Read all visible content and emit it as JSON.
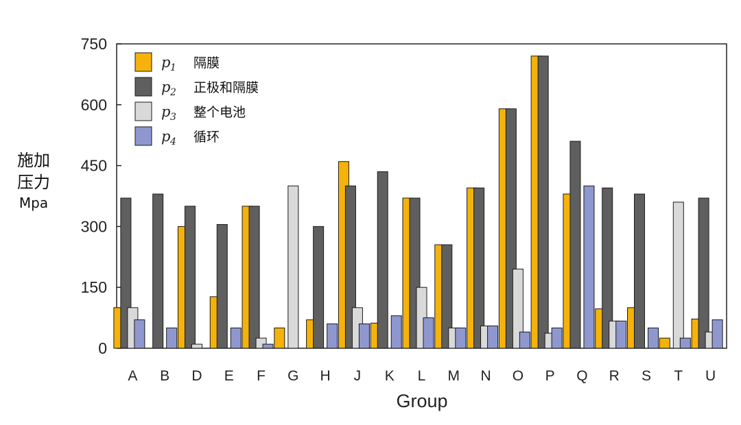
{
  "chart_data": {
    "type": "bar",
    "title": "",
    "xlabel": "Group",
    "ylabel": [
      "施加",
      "压力"
    ],
    "yunit": "Mpa",
    "ylim": [
      0,
      750
    ],
    "yticks": [
      0,
      150,
      300,
      450,
      600,
      750
    ],
    "categories": [
      "A",
      "B",
      "D",
      "E",
      "F",
      "G",
      "H",
      "J",
      "K",
      "L",
      "M",
      "N",
      "O",
      "P",
      "Q",
      "R",
      "S",
      "T",
      "U"
    ],
    "series": [
      {
        "name": "隔膜",
        "symbol": "p",
        "sub": "1",
        "color": "#F5B20A",
        "values": [
          100,
          0,
          300,
          127,
          350,
          50,
          70,
          460,
          62,
          370,
          255,
          395,
          590,
          720,
          380,
          97,
          100,
          25,
          72
        ]
      },
      {
        "name": "正极和隔膜",
        "symbol": "p",
        "sub": "2",
        "color": "#5F5F5F",
        "values": [
          370,
          380,
          350,
          305,
          350,
          0,
          300,
          400,
          435,
          370,
          255,
          395,
          590,
          720,
          510,
          395,
          380,
          0,
          370
        ]
      },
      {
        "name": "整个电池",
        "symbol": "p",
        "sub": "3",
        "color": "#D9D9D9",
        "values": [
          100,
          0,
          10,
          0,
          25,
          400,
          0,
          100,
          0,
          150,
          50,
          55,
          195,
          37,
          0,
          67,
          0,
          360,
          40
        ]
      },
      {
        "name": "循环",
        "symbol": "p",
        "sub": "4",
        "color": "#8E98CF",
        "values": [
          70,
          50,
          0,
          50,
          10,
          0,
          60,
          60,
          80,
          75,
          50,
          55,
          40,
          50,
          400,
          67,
          50,
          25,
          70
        ]
      }
    ],
    "grid": false,
    "legend_position": "top-left"
  }
}
